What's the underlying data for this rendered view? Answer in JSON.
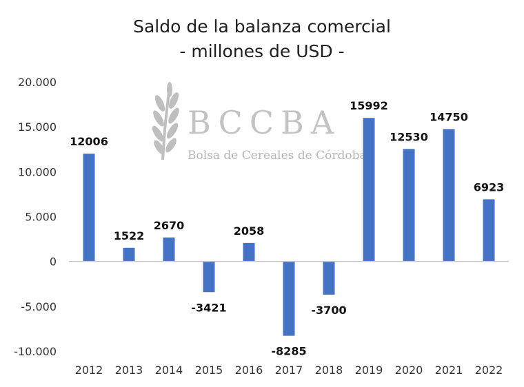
{
  "watermark": {
    "letters": "BCCBA",
    "subtitle": "Bolsa de Cereales de Córdoba"
  },
  "chart_data": {
    "type": "bar",
    "title": "Saldo de la balanza comercial",
    "subtitle": "- millones de USD -",
    "xlabel": "",
    "ylabel": "",
    "categories": [
      "2012",
      "2013",
      "2014",
      "2015",
      "2016",
      "2017",
      "2018",
      "2019",
      "2020",
      "2021",
      "2022"
    ],
    "values": [
      12006,
      1522,
      2670,
      -3421,
      2058,
      -8285,
      -3700,
      15992,
      12530,
      14750,
      6923
    ],
    "data_labels": [
      "12006",
      "1522",
      "2670",
      "-3421",
      "2058",
      "-8285",
      "-3700",
      "15992",
      "12530",
      "14750",
      "6923"
    ],
    "ylim": [
      -10000,
      20000
    ],
    "yticks": [
      20000,
      15000,
      10000,
      5000,
      0,
      -5000,
      -10000
    ],
    "ytick_labels": [
      "20.000",
      "15.000",
      "10.000",
      "5.000",
      "0",
      "-5.000",
      "-10.000"
    ],
    "bar_color": "#4472C4",
    "grid": false,
    "legend": "none"
  }
}
